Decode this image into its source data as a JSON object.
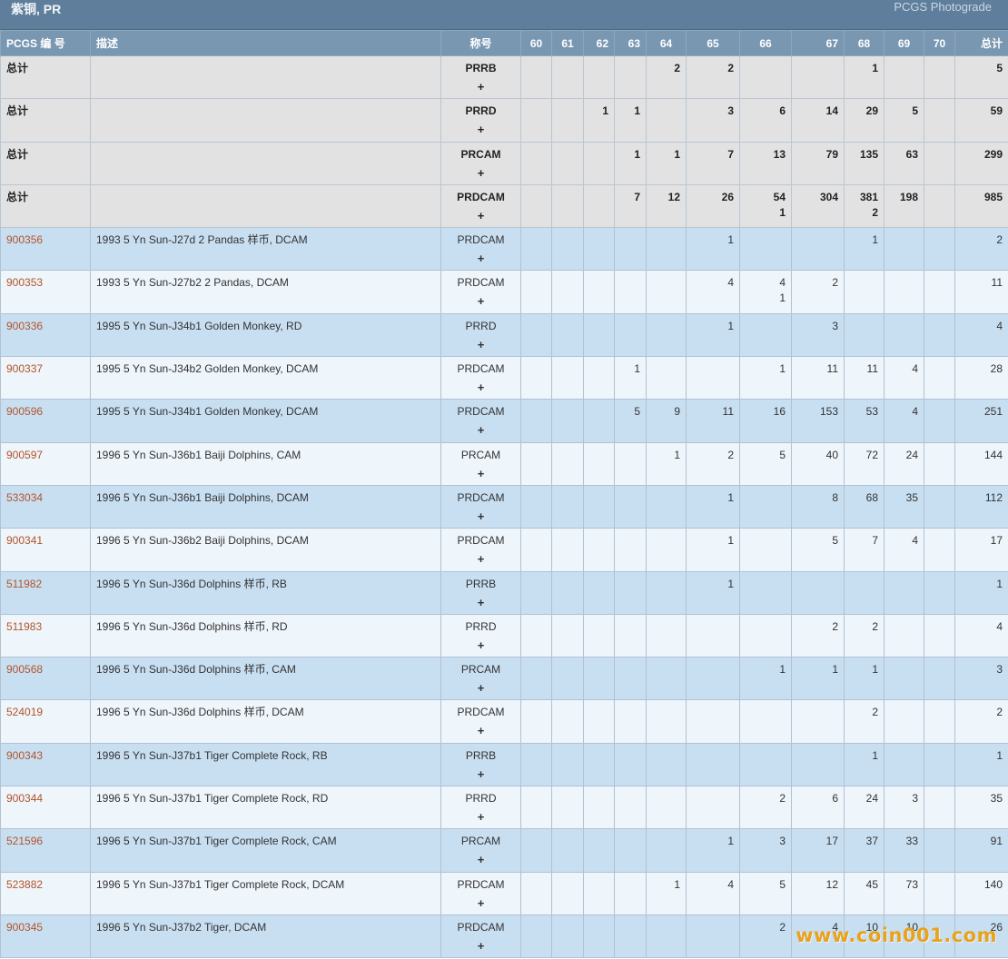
{
  "header": {
    "title": "紫铜, PR",
    "photograde_label": "PCGS Photograde"
  },
  "columns": {
    "pcgs": "PCGS 编 号",
    "desc": "描述",
    "designation": "称号",
    "grades": [
      "60",
      "61",
      "62",
      "63",
      "64",
      "65",
      "66",
      "67",
      "68",
      "69",
      "70"
    ],
    "total": "总计"
  },
  "totals": [
    {
      "label": "总计",
      "designation": "PRRB",
      "plus": "+",
      "g": [
        "",
        "",
        "",
        "",
        "2",
        "2",
        "",
        "",
        "1",
        "",
        ""
      ],
      "sub": [
        "",
        "",
        "",
        "",
        "",
        "",
        "",
        "",
        "",
        "",
        ""
      ],
      "total": "5"
    },
    {
      "label": "总计",
      "designation": "PRRD",
      "plus": "+",
      "g": [
        "",
        "",
        "1",
        "1",
        "",
        "3",
        "6",
        "14",
        "29",
        "5",
        ""
      ],
      "sub": [
        "",
        "",
        "",
        "",
        "",
        "",
        "",
        "",
        "",
        "",
        ""
      ],
      "total": "59"
    },
    {
      "label": "总计",
      "designation": "PRCAM",
      "plus": "+",
      "g": [
        "",
        "",
        "",
        "1",
        "1",
        "7",
        "13",
        "79",
        "135",
        "63",
        ""
      ],
      "sub": [
        "",
        "",
        "",
        "",
        "",
        "",
        "",
        "",
        "",
        "",
        ""
      ],
      "total": "299"
    },
    {
      "label": "总计",
      "designation": "PRDCAM",
      "plus": "+",
      "g": [
        "",
        "",
        "",
        "7",
        "12",
        "26",
        "54",
        "304",
        "381",
        "198",
        ""
      ],
      "sub": [
        "",
        "",
        "",
        "",
        "",
        "",
        "1",
        "",
        "2",
        "",
        ""
      ],
      "total": "985"
    }
  ],
  "rows": [
    {
      "pcgs": "900356",
      "desc": "1993 5 Yn Sun-J27d 2 Pandas 样币, DCAM",
      "designation": "PRDCAM",
      "plus": "+",
      "g": [
        "",
        "",
        "",
        "",
        "",
        "1",
        "",
        "",
        "1",
        "",
        ""
      ],
      "sub": [
        "",
        "",
        "",
        "",
        "",
        "",
        "",
        "",
        "",
        "",
        ""
      ],
      "total": "2"
    },
    {
      "pcgs": "900353",
      "desc": "1993 5 Yn Sun-J27b2 2 Pandas, DCAM",
      "designation": "PRDCAM",
      "plus": "+",
      "g": [
        "",
        "",
        "",
        "",
        "",
        "4",
        "4",
        "2",
        "",
        "",
        ""
      ],
      "sub": [
        "",
        "",
        "",
        "",
        "",
        "",
        "1",
        "",
        "",
        "",
        ""
      ],
      "total": "11"
    },
    {
      "pcgs": "900336",
      "desc": "1995 5 Yn Sun-J34b1 Golden Monkey, RD",
      "designation": "PRRD",
      "plus": "+",
      "g": [
        "",
        "",
        "",
        "",
        "",
        "1",
        "",
        "3",
        "",
        "",
        ""
      ],
      "sub": [
        "",
        "",
        "",
        "",
        "",
        "",
        "",
        "",
        "",
        "",
        ""
      ],
      "total": "4"
    },
    {
      "pcgs": "900337",
      "desc": "1995 5 Yn Sun-J34b2 Golden Monkey, DCAM",
      "designation": "PRDCAM",
      "plus": "+",
      "g": [
        "",
        "",
        "",
        "1",
        "",
        "",
        "1",
        "11",
        "11",
        "4",
        ""
      ],
      "sub": [
        "",
        "",
        "",
        "",
        "",
        "",
        "",
        "",
        "",
        "",
        ""
      ],
      "total": "28"
    },
    {
      "pcgs": "900596",
      "desc": "1995 5 Yn Sun-J34b1 Golden Monkey, DCAM",
      "designation": "PRDCAM",
      "plus": "+",
      "g": [
        "",
        "",
        "",
        "5",
        "9",
        "11",
        "16",
        "153",
        "53",
        "4",
        ""
      ],
      "sub": [
        "",
        "",
        "",
        "",
        "",
        "",
        "",
        "",
        "",
        "",
        ""
      ],
      "total": "251"
    },
    {
      "pcgs": "900597",
      "desc": "1996 5 Yn Sun-J36b1 Baiji Dolphins, CAM",
      "designation": "PRCAM",
      "plus": "+",
      "g": [
        "",
        "",
        "",
        "",
        "1",
        "2",
        "5",
        "40",
        "72",
        "24",
        ""
      ],
      "sub": [
        "",
        "",
        "",
        "",
        "",
        "",
        "",
        "",
        "",
        "",
        ""
      ],
      "total": "144"
    },
    {
      "pcgs": "533034",
      "desc": "1996 5 Yn Sun-J36b1 Baiji Dolphins, DCAM",
      "designation": "PRDCAM",
      "plus": "+",
      "g": [
        "",
        "",
        "",
        "",
        "",
        "1",
        "",
        "8",
        "68",
        "35",
        ""
      ],
      "sub": [
        "",
        "",
        "",
        "",
        "",
        "",
        "",
        "",
        "",
        "",
        ""
      ],
      "total": "112"
    },
    {
      "pcgs": "900341",
      "desc": "1996 5 Yn Sun-J36b2 Baiji Dolphins, DCAM",
      "designation": "PRDCAM",
      "plus": "+",
      "g": [
        "",
        "",
        "",
        "",
        "",
        "1",
        "",
        "5",
        "7",
        "4",
        ""
      ],
      "sub": [
        "",
        "",
        "",
        "",
        "",
        "",
        "",
        "",
        "",
        "",
        ""
      ],
      "total": "17"
    },
    {
      "pcgs": "511982",
      "desc": "1996 5 Yn Sun-J36d Dolphins 样币, RB",
      "designation": "PRRB",
      "plus": "+",
      "g": [
        "",
        "",
        "",
        "",
        "",
        "1",
        "",
        "",
        "",
        "",
        ""
      ],
      "sub": [
        "",
        "",
        "",
        "",
        "",
        "",
        "",
        "",
        "",
        "",
        ""
      ],
      "total": "1"
    },
    {
      "pcgs": "511983",
      "desc": "1996 5 Yn Sun-J36d Dolphins 样币, RD",
      "designation": "PRRD",
      "plus": "+",
      "g": [
        "",
        "",
        "",
        "",
        "",
        "",
        "",
        "2",
        "2",
        "",
        ""
      ],
      "sub": [
        "",
        "",
        "",
        "",
        "",
        "",
        "",
        "",
        "",
        "",
        ""
      ],
      "total": "4"
    },
    {
      "pcgs": "900568",
      "desc": "1996 5 Yn Sun-J36d Dolphins 样币, CAM",
      "designation": "PRCAM",
      "plus": "+",
      "g": [
        "",
        "",
        "",
        "",
        "",
        "",
        "1",
        "1",
        "1",
        "",
        ""
      ],
      "sub": [
        "",
        "",
        "",
        "",
        "",
        "",
        "",
        "",
        "",
        "",
        ""
      ],
      "total": "3"
    },
    {
      "pcgs": "524019",
      "desc": "1996 5 Yn Sun-J36d Dolphins 样币, DCAM",
      "designation": "PRDCAM",
      "plus": "+",
      "g": [
        "",
        "",
        "",
        "",
        "",
        "",
        "",
        "",
        "2",
        "",
        ""
      ],
      "sub": [
        "",
        "",
        "",
        "",
        "",
        "",
        "",
        "",
        "",
        "",
        ""
      ],
      "total": "2"
    },
    {
      "pcgs": "900343",
      "desc": "1996 5 Yn Sun-J37b1 Tiger Complete Rock, RB",
      "designation": "PRRB",
      "plus": "+",
      "g": [
        "",
        "",
        "",
        "",
        "",
        "",
        "",
        "",
        "1",
        "",
        ""
      ],
      "sub": [
        "",
        "",
        "",
        "",
        "",
        "",
        "",
        "",
        "",
        "",
        ""
      ],
      "total": "1"
    },
    {
      "pcgs": "900344",
      "desc": "1996 5 Yn Sun-J37b1 Tiger Complete Rock, RD",
      "designation": "PRRD",
      "plus": "+",
      "g": [
        "",
        "",
        "",
        "",
        "",
        "",
        "2",
        "6",
        "24",
        "3",
        ""
      ],
      "sub": [
        "",
        "",
        "",
        "",
        "",
        "",
        "",
        "",
        "",
        "",
        ""
      ],
      "total": "35"
    },
    {
      "pcgs": "521596",
      "desc": "1996 5 Yn Sun-J37b1 Tiger Complete Rock, CAM",
      "designation": "PRCAM",
      "plus": "+",
      "g": [
        "",
        "",
        "",
        "",
        "",
        "1",
        "3",
        "17",
        "37",
        "33",
        ""
      ],
      "sub": [
        "",
        "",
        "",
        "",
        "",
        "",
        "",
        "",
        "",
        "",
        ""
      ],
      "total": "91"
    },
    {
      "pcgs": "523882",
      "desc": "1996 5 Yn Sun-J37b1 Tiger Complete Rock, DCAM",
      "designation": "PRDCAM",
      "plus": "+",
      "g": [
        "",
        "",
        "",
        "",
        "1",
        "4",
        "5",
        "12",
        "45",
        "73",
        ""
      ],
      "sub": [
        "",
        "",
        "",
        "",
        "",
        "",
        "",
        "",
        "",
        "",
        ""
      ],
      "total": "140"
    },
    {
      "pcgs": "900345",
      "desc": "1996 5 Yn Sun-J37b2 Tiger, DCAM",
      "designation": "PRDCAM",
      "plus": "+",
      "g": [
        "",
        "",
        "",
        "",
        "",
        "",
        "2",
        "4",
        "10",
        "10",
        ""
      ],
      "sub": [
        "",
        "",
        "",
        "",
        "",
        "",
        "",
        "",
        "",
        "",
        ""
      ],
      "total": "26"
    }
  ],
  "watermark": "www.coin001.com"
}
